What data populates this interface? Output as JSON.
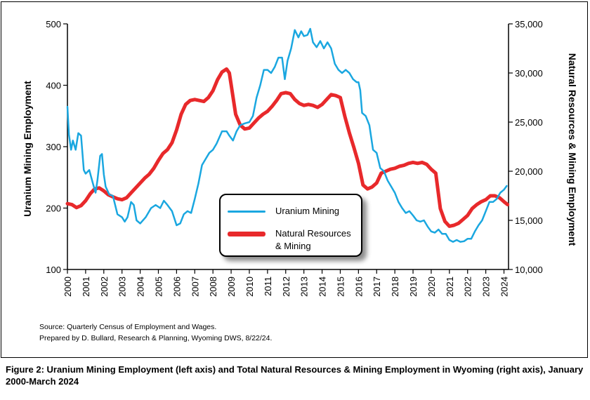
{
  "chart_data": {
    "type": "line",
    "left_axis": {
      "title": "Uranium Mining Employment",
      "range": [
        100,
        500
      ],
      "ticks": [
        "100",
        "200",
        "300",
        "400",
        "500"
      ]
    },
    "right_axis": {
      "title": "Natural Resources & Mining Employment",
      "range": [
        10000,
        35000
      ],
      "ticks": [
        "10,000",
        "15,000",
        "20,000",
        "25,000",
        "30,000",
        "35,000"
      ]
    },
    "x_axis": {
      "range": [
        2000,
        2024.25
      ],
      "ticks": [
        "2000",
        "2001",
        "2002",
        "2003",
        "2004",
        "2005",
        "2006",
        "2007",
        "2008",
        "2009",
        "2010",
        "2011",
        "2012",
        "2013",
        "2014",
        "2015",
        "2016",
        "2017",
        "2018",
        "2019",
        "2020",
        "2021",
        "2022",
        "2023",
        "2024"
      ]
    },
    "legend": [
      "Uranium Mining",
      "Natural Resources & Mining"
    ],
    "series": [
      {
        "name": "Uranium Mining",
        "axis": "left",
        "color": "#1aa7e0",
        "points": [
          [
            2000,
            365
          ],
          [
            2000.08,
            320
          ],
          [
            2000.2,
            295
          ],
          [
            2000.3,
            310
          ],
          [
            2000.45,
            295
          ],
          [
            2000.6,
            322
          ],
          [
            2000.75,
            318
          ],
          [
            2000.9,
            262
          ],
          [
            2001,
            256
          ],
          [
            2001.2,
            262
          ],
          [
            2001.4,
            240
          ],
          [
            2001.55,
            225
          ],
          [
            2001.65,
            245
          ],
          [
            2001.8,
            285
          ],
          [
            2001.9,
            288
          ],
          [
            2002,
            255
          ],
          [
            2002.1,
            235
          ],
          [
            2002.3,
            222
          ],
          [
            2002.5,
            220
          ],
          [
            2002.75,
            190
          ],
          [
            2003,
            185
          ],
          [
            2003.15,
            178
          ],
          [
            2003.3,
            185
          ],
          [
            2003.5,
            210
          ],
          [
            2003.65,
            205
          ],
          [
            2003.8,
            180
          ],
          [
            2004,
            175
          ],
          [
            2004.3,
            185
          ],
          [
            2004.6,
            200
          ],
          [
            2004.85,
            205
          ],
          [
            2005.1,
            200
          ],
          [
            2005.3,
            212
          ],
          [
            2005.5,
            205
          ],
          [
            2005.75,
            195
          ],
          [
            2006,
            172
          ],
          [
            2006.2,
            175
          ],
          [
            2006.4,
            190
          ],
          [
            2006.6,
            195
          ],
          [
            2006.8,
            192
          ],
          [
            2007,
            215
          ],
          [
            2007.2,
            240
          ],
          [
            2007.4,
            270
          ],
          [
            2007.6,
            280
          ],
          [
            2007.8,
            290
          ],
          [
            2008,
            295
          ],
          [
            2008.2,
            305
          ],
          [
            2008.5,
            325
          ],
          [
            2008.75,
            325
          ],
          [
            2008.9,
            318
          ],
          [
            2009.1,
            310
          ],
          [
            2009.3,
            325
          ],
          [
            2009.5,
            335
          ],
          [
            2009.75,
            338
          ],
          [
            2010,
            340
          ],
          [
            2010.2,
            350
          ],
          [
            2010.4,
            380
          ],
          [
            2010.6,
            400
          ],
          [
            2010.8,
            425
          ],
          [
            2011,
            425
          ],
          [
            2011.2,
            420
          ],
          [
            2011.4,
            430
          ],
          [
            2011.6,
            445
          ],
          [
            2011.8,
            445
          ],
          [
            2011.95,
            410
          ],
          [
            2012.1,
            440
          ],
          [
            2012.3,
            460
          ],
          [
            2012.5,
            490
          ],
          [
            2012.7,
            478
          ],
          [
            2012.85,
            488
          ],
          [
            2013,
            480
          ],
          [
            2013.2,
            482
          ],
          [
            2013.35,
            492
          ],
          [
            2013.5,
            470
          ],
          [
            2013.7,
            462
          ],
          [
            2013.9,
            472
          ],
          [
            2014.1,
            460
          ],
          [
            2014.3,
            470
          ],
          [
            2014.5,
            460
          ],
          [
            2014.7,
            435
          ],
          [
            2014.9,
            425
          ],
          [
            2015.1,
            420
          ],
          [
            2015.3,
            425
          ],
          [
            2015.5,
            420
          ],
          [
            2015.7,
            410
          ],
          [
            2015.9,
            405
          ],
          [
            2016,
            405
          ],
          [
            2016.1,
            392
          ],
          [
            2016.2,
            355
          ],
          [
            2016.4,
            350
          ],
          [
            2016.6,
            335
          ],
          [
            2016.8,
            295
          ],
          [
            2017,
            290
          ],
          [
            2017.2,
            265
          ],
          [
            2017.4,
            260
          ],
          [
            2017.6,
            245
          ],
          [
            2017.8,
            235
          ],
          [
            2018,
            225
          ],
          [
            2018.2,
            210
          ],
          [
            2018.4,
            200
          ],
          [
            2018.6,
            192
          ],
          [
            2018.8,
            195
          ],
          [
            2019,
            188
          ],
          [
            2019.2,
            180
          ],
          [
            2019.4,
            178
          ],
          [
            2019.6,
            180
          ],
          [
            2019.8,
            170
          ],
          [
            2020,
            162
          ],
          [
            2020.2,
            160
          ],
          [
            2020.4,
            165
          ],
          [
            2020.6,
            158
          ],
          [
            2020.8,
            158
          ],
          [
            2021,
            148
          ],
          [
            2021.2,
            145
          ],
          [
            2021.4,
            148
          ],
          [
            2021.6,
            145
          ],
          [
            2021.8,
            146
          ],
          [
            2022,
            150
          ],
          [
            2022.2,
            150
          ],
          [
            2022.4,
            162
          ],
          [
            2022.6,
            172
          ],
          [
            2022.8,
            180
          ],
          [
            2023,
            195
          ],
          [
            2023.2,
            210
          ],
          [
            2023.4,
            210
          ],
          [
            2023.6,
            215
          ],
          [
            2023.8,
            225
          ],
          [
            2024,
            230
          ],
          [
            2024.15,
            236
          ]
        ]
      },
      {
        "name": "Natural Resources & Mining",
        "axis": "right",
        "color": "#e8292b",
        "points": [
          [
            2000,
            16700
          ],
          [
            2000.25,
            16600
          ],
          [
            2000.5,
            16300
          ],
          [
            2000.75,
            16500
          ],
          [
            2001,
            17000
          ],
          [
            2001.25,
            17700
          ],
          [
            2001.5,
            18200
          ],
          [
            2001.75,
            18300
          ],
          [
            2002,
            18000
          ],
          [
            2002.25,
            17600
          ],
          [
            2002.5,
            17400
          ],
          [
            2002.75,
            17200
          ],
          [
            2003,
            17100
          ],
          [
            2003.25,
            17300
          ],
          [
            2003.5,
            17800
          ],
          [
            2003.75,
            18300
          ],
          [
            2004,
            18800
          ],
          [
            2004.25,
            19300
          ],
          [
            2004.5,
            19700
          ],
          [
            2004.75,
            20300
          ],
          [
            2005,
            21100
          ],
          [
            2005.25,
            21800
          ],
          [
            2005.5,
            22200
          ],
          [
            2005.75,
            22900
          ],
          [
            2006,
            24200
          ],
          [
            2006.25,
            25800
          ],
          [
            2006.5,
            26800
          ],
          [
            2006.75,
            27200
          ],
          [
            2007,
            27300
          ],
          [
            2007.25,
            27200
          ],
          [
            2007.5,
            27100
          ],
          [
            2007.75,
            27500
          ],
          [
            2008,
            28200
          ],
          [
            2008.25,
            29300
          ],
          [
            2008.5,
            30100
          ],
          [
            2008.75,
            30400
          ],
          [
            2008.9,
            30000
          ],
          [
            2009,
            28800
          ],
          [
            2009.25,
            25800
          ],
          [
            2009.5,
            24700
          ],
          [
            2009.75,
            24300
          ],
          [
            2010,
            24400
          ],
          [
            2010.25,
            24900
          ],
          [
            2010.5,
            25400
          ],
          [
            2010.75,
            25800
          ],
          [
            2011,
            26100
          ],
          [
            2011.25,
            26600
          ],
          [
            2011.5,
            27200
          ],
          [
            2011.75,
            27900
          ],
          [
            2012,
            28000
          ],
          [
            2012.25,
            27900
          ],
          [
            2012.5,
            27300
          ],
          [
            2012.75,
            26900
          ],
          [
            2013,
            26700
          ],
          [
            2013.25,
            26800
          ],
          [
            2013.5,
            26700
          ],
          [
            2013.75,
            26500
          ],
          [
            2014,
            26800
          ],
          [
            2014.25,
            27300
          ],
          [
            2014.5,
            27800
          ],
          [
            2014.75,
            27700
          ],
          [
            2015,
            27500
          ],
          [
            2015.25,
            25600
          ],
          [
            2015.5,
            23900
          ],
          [
            2015.75,
            22400
          ],
          [
            2016,
            20800
          ],
          [
            2016.25,
            18600
          ],
          [
            2016.5,
            18200
          ],
          [
            2016.75,
            18400
          ],
          [
            2017,
            18800
          ],
          [
            2017.25,
            19800
          ],
          [
            2017.5,
            20000
          ],
          [
            2017.75,
            20200
          ],
          [
            2018,
            20300
          ],
          [
            2018.25,
            20500
          ],
          [
            2018.5,
            20600
          ],
          [
            2018.75,
            20800
          ],
          [
            2019,
            20900
          ],
          [
            2019.25,
            20800
          ],
          [
            2019.5,
            20900
          ],
          [
            2019.75,
            20700
          ],
          [
            2020,
            20200
          ],
          [
            2020.25,
            19800
          ],
          [
            2020.5,
            16200
          ],
          [
            2020.75,
            14900
          ],
          [
            2021,
            14400
          ],
          [
            2021.25,
            14500
          ],
          [
            2021.5,
            14700
          ],
          [
            2021.75,
            15100
          ],
          [
            2022,
            15500
          ],
          [
            2022.25,
            16200
          ],
          [
            2022.5,
            16600
          ],
          [
            2022.75,
            16900
          ],
          [
            2023,
            17100
          ],
          [
            2023.25,
            17500
          ],
          [
            2023.5,
            17500
          ],
          [
            2023.75,
            17300
          ],
          [
            2024,
            16900
          ],
          [
            2024.2,
            16600
          ]
        ]
      }
    ],
    "source": "Source: Quarterly Census of Employment and Wages.",
    "credit": "Prepared by D. Bullard, Research & Planning, Wyoming DWS, 8/22/24.",
    "caption": "Figure 2: Uranium Mining Employment (left axis) and Total Natural Resources & Mining Employment in Wyoming (right axis), January 2000-March 2024"
  }
}
